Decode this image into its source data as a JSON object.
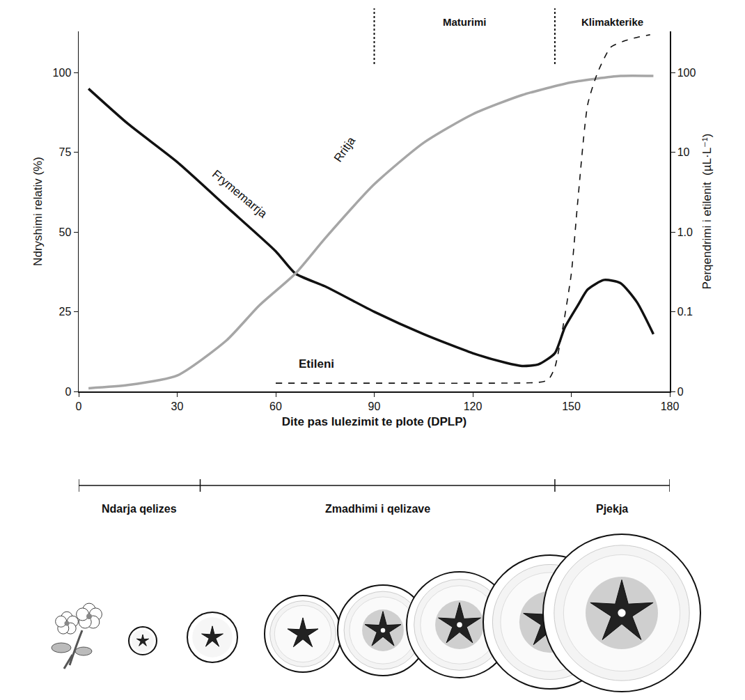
{
  "chart_data": {
    "type": "line",
    "x_label": "Dite pas lulezimit te plote (DPLP)",
    "y_label": "Ndryshimi relativ (%)",
    "y2_label": "Perqendrimi i etilenit  (µL·L⁻¹)",
    "xlim": [
      0,
      180
    ],
    "xticks": [
      0,
      30,
      60,
      90,
      120,
      150,
      180
    ],
    "ylim": [
      0,
      113
    ],
    "yticks": [
      0,
      25,
      50,
      75,
      100
    ],
    "y2lim": [
      0.01,
      331
    ],
    "y2ticks": [
      {
        "value": 0.01,
        "label": "0"
      },
      0.1,
      {
        "value": 1,
        "label": "1.0"
      },
      10,
      100
    ],
    "log": "y2",
    "grid": false,
    "series": [
      {
        "name": "Frymemarrja",
        "color": "#111111",
        "line_style": "solid",
        "axis": "y",
        "x": [
          3,
          15,
          30,
          45,
          60,
          66,
          75,
          90,
          105,
          120,
          130,
          135,
          140,
          145,
          148,
          152,
          155,
          160,
          165,
          170,
          175
        ],
        "values": [
          95,
          84,
          72,
          58,
          44,
          37,
          33,
          25,
          18,
          12,
          9,
          8,
          8.5,
          12,
          20,
          27,
          32,
          35,
          34,
          28,
          18
        ],
        "label_at": [
          49,
          62
        ]
      },
      {
        "name": "Rritja",
        "color": "#a6a6a6",
        "line_style": "solid",
        "axis": "y",
        "x": [
          3,
          15,
          30,
          45,
          55,
          66,
          75,
          90,
          105,
          120,
          135,
          150,
          165,
          175
        ],
        "values": [
          1,
          2,
          5,
          16,
          27,
          37,
          48,
          65,
          78,
          87,
          93,
          97,
          99,
          99
        ],
        "label_at": [
          81,
          76
        ]
      },
      {
        "name": "Etileni",
        "color": "#111111",
        "line_style": "dash",
        "axis": "y2",
        "x": [
          60,
          80,
          100,
          120,
          140,
          143,
          145,
          147,
          150,
          152,
          155,
          158,
          162,
          166,
          170,
          174
        ],
        "values": [
          0.0127,
          0.0127,
          0.0127,
          0.0127,
          0.013,
          0.014,
          0.02,
          0.05,
          0.3,
          2.5,
          40,
          100,
          209,
          250,
          278,
          300
        ],
        "label_at": [
          72.5,
          0.022
        ]
      }
    ],
    "phases": [
      {
        "label": "Maturimi",
        "start": 90,
        "end": 145
      },
      {
        "label": "Klimakterike",
        "start": 145,
        "end": 180
      }
    ],
    "stages": [
      {
        "label": "Ndarja qelizes",
        "start": 0,
        "end": 37
      },
      {
        "label": "Zmadhimi i qelizave",
        "start": 37,
        "end": 145
      },
      {
        "label": "Pjekja",
        "start": 145,
        "end": 180
      }
    ]
  }
}
